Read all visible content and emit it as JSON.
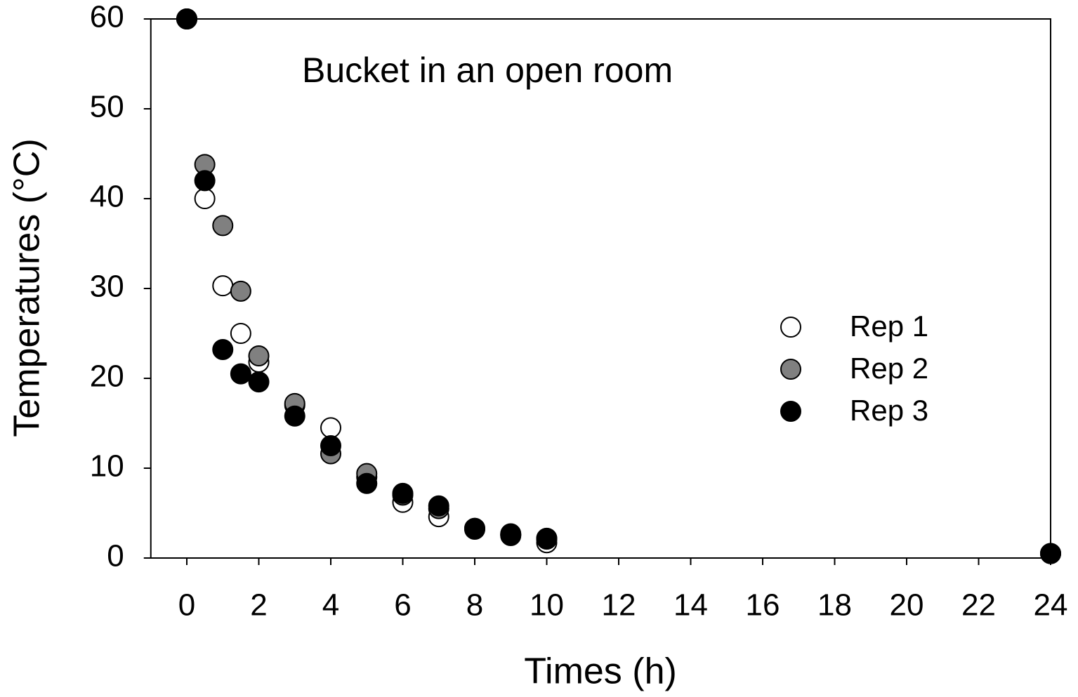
{
  "chart_data": {
    "type": "scatter",
    "annotation": "Bucket in an open room",
    "x_label": "Times (h)",
    "y_label": "Temperatures (°C)",
    "x": [
      0,
      0.5,
      1,
      1.5,
      2,
      3,
      4,
      5,
      6,
      7,
      8,
      9,
      10,
      24
    ],
    "series": [
      {
        "name": "Rep 1",
        "color": "#ffffff",
        "values": [
          60,
          40,
          30.3,
          25,
          21.8,
          17,
          14.5,
          9,
          6.2,
          4.6,
          3.2,
          2.5,
          1.7,
          0.5
        ]
      },
      {
        "name": "Rep 2",
        "color": "#808080",
        "values": [
          60,
          43.8,
          37,
          29.7,
          22.5,
          17.2,
          11.6,
          9.4,
          7,
          5.5,
          3.3,
          2.7,
          2.2,
          0.5
        ]
      },
      {
        "name": "Rep 3",
        "color": "#000000",
        "values": [
          60,
          42,
          23.2,
          20.5,
          19.6,
          15.8,
          12.5,
          8.3,
          7.2,
          5.8,
          3.3,
          2.6,
          2.1,
          0.5
        ]
      }
    ],
    "xlim": [
      -1,
      24
    ],
    "ylim": [
      0,
      60
    ],
    "xticks": [
      0,
      2,
      4,
      6,
      8,
      10,
      12,
      14,
      16,
      18,
      20,
      22,
      24
    ],
    "yticks": [
      0,
      10,
      20,
      30,
      40,
      50,
      60
    ],
    "legend": "right",
    "grid": false
  }
}
